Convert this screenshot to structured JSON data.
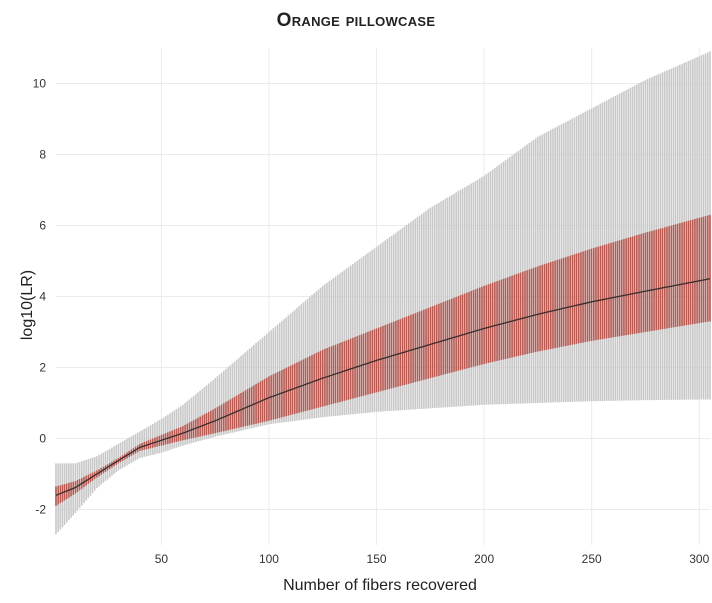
{
  "chart_data": {
    "type": "area",
    "title": "Orange pillowcase",
    "xlabel": "Number of fibers recovered",
    "ylabel": "log10(LR)",
    "xlim": [
      1,
      305
    ],
    "ylim": [
      -3,
      11
    ],
    "xticks": [
      50,
      100,
      150,
      200,
      250,
      300
    ],
    "yticks": [
      -2,
      0,
      2,
      4,
      6,
      8,
      10
    ],
    "grid": true,
    "colors": {
      "outer_band": "#c8c8c8",
      "inner_band": "#b85a52",
      "median_line": "#3a2d2d",
      "grid": "#ebebeb"
    },
    "series": [
      {
        "role": "outer interval (vertical bars)",
        "x": [
          1,
          10,
          20,
          30,
          40,
          50,
          60,
          75,
          100,
          125,
          150,
          175,
          200,
          225,
          250,
          275,
          305
        ],
        "low": [
          -2.7,
          -2.1,
          -1.4,
          -0.9,
          -0.55,
          -0.4,
          -0.2,
          0.05,
          0.4,
          0.6,
          0.75,
          0.85,
          0.95,
          1.0,
          1.05,
          1.08,
          1.1
        ],
        "high": [
          -0.7,
          -0.7,
          -0.5,
          -0.15,
          0.2,
          0.55,
          0.95,
          1.7,
          3.0,
          4.3,
          5.4,
          6.5,
          7.4,
          8.5,
          9.3,
          10.1,
          10.9
        ]
      },
      {
        "role": "inner interval (vertical bars)",
        "x": [
          1,
          10,
          20,
          30,
          40,
          50,
          60,
          75,
          100,
          125,
          150,
          175,
          200,
          225,
          250,
          275,
          305
        ],
        "low": [
          -1.9,
          -1.55,
          -1.1,
          -0.7,
          -0.35,
          -0.2,
          -0.05,
          0.15,
          0.5,
          0.9,
          1.3,
          1.7,
          2.1,
          2.45,
          2.75,
          3.0,
          3.3
        ],
        "high": [
          -1.35,
          -1.2,
          -0.9,
          -0.55,
          -0.15,
          0.1,
          0.35,
          0.85,
          1.75,
          2.5,
          3.1,
          3.7,
          4.3,
          4.85,
          5.35,
          5.8,
          6.3
        ]
      },
      {
        "role": "median line",
        "x": [
          1,
          10,
          20,
          30,
          40,
          50,
          60,
          75,
          100,
          125,
          150,
          175,
          200,
          225,
          250,
          275,
          305
        ],
        "y": [
          -1.6,
          -1.38,
          -1.0,
          -0.62,
          -0.25,
          -0.05,
          0.15,
          0.5,
          1.15,
          1.7,
          2.2,
          2.65,
          3.1,
          3.5,
          3.85,
          4.15,
          4.5
        ]
      }
    ]
  }
}
